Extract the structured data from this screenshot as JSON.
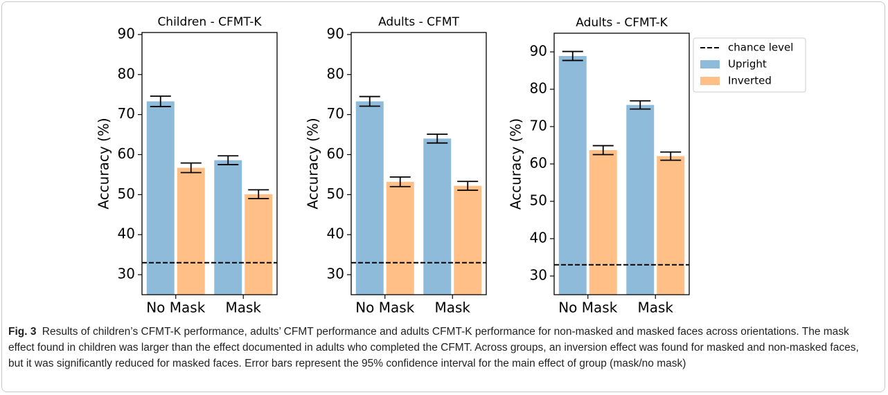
{
  "chart_data": [
    {
      "type": "bar",
      "title": "Children - CFMT-K",
      "ylabel": "Accuracy (%)",
      "categories": [
        "No Mask",
        "Mask"
      ],
      "series": [
        {
          "color": "#8fbbda",
          "values": [
            73.3,
            58.6
          ],
          "errors": [
            1.3,
            1.1
          ]
        },
        {
          "color": "#ffbf86",
          "values": [
            56.7,
            50.1
          ],
          "errors": [
            1.2,
            1.1
          ]
        }
      ],
      "reference_line": {
        "value": 33
      },
      "ylim": [
        25,
        90.5
      ],
      "yticks": [
        30,
        40,
        50,
        60,
        70,
        80,
        90
      ]
    },
    {
      "type": "bar",
      "title": "Adults - CFMT",
      "ylabel": "Accuracy (%)",
      "categories": [
        "No Mask",
        "Mask"
      ],
      "series": [
        {
          "color": "#8fbbda",
          "values": [
            73.3,
            64.0
          ],
          "errors": [
            1.2,
            1.1
          ]
        },
        {
          "color": "#ffbf86",
          "values": [
            53.2,
            52.2
          ],
          "errors": [
            1.2,
            1.1
          ]
        }
      ],
      "reference_line": {
        "value": 33
      },
      "ylim": [
        25,
        90.5
      ],
      "yticks": [
        30,
        40,
        50,
        60,
        70,
        80,
        90
      ]
    },
    {
      "type": "bar",
      "title": "Adults - CFMT-K",
      "ylabel": "Accuracy (%)",
      "categories": [
        "No Mask",
        "Mask"
      ],
      "series": [
        {
          "name": "Upright",
          "color": "#8fbbda",
          "values": [
            88.9,
            75.8
          ],
          "errors": [
            1.2,
            1.1
          ]
        },
        {
          "name": "Inverted",
          "color": "#ffbf86",
          "values": [
            63.7,
            62.1
          ],
          "errors": [
            1.2,
            1.1
          ]
        }
      ],
      "reference_line": {
        "name": "chance level",
        "value": 33
      },
      "legend": "outside-right",
      "ylim": [
        25,
        95
      ],
      "yticks": [
        30,
        40,
        50,
        60,
        70,
        80,
        90
      ]
    }
  ],
  "caption": {
    "label": "Fig. 3",
    "text": "Results of children’s CFMT-K performance, adults’ CFMT performance and adults CFMT-K performance for non-masked and masked faces across orientations. The mask effect found in children was larger than the effect documented in adults who completed the CFMT. Across groups, an inversion effect was found for masked and non-masked faces, but it was significantly reduced for masked faces. Error bars represent the 95% confidence interval for the main effect of group (mask/no mask)"
  }
}
